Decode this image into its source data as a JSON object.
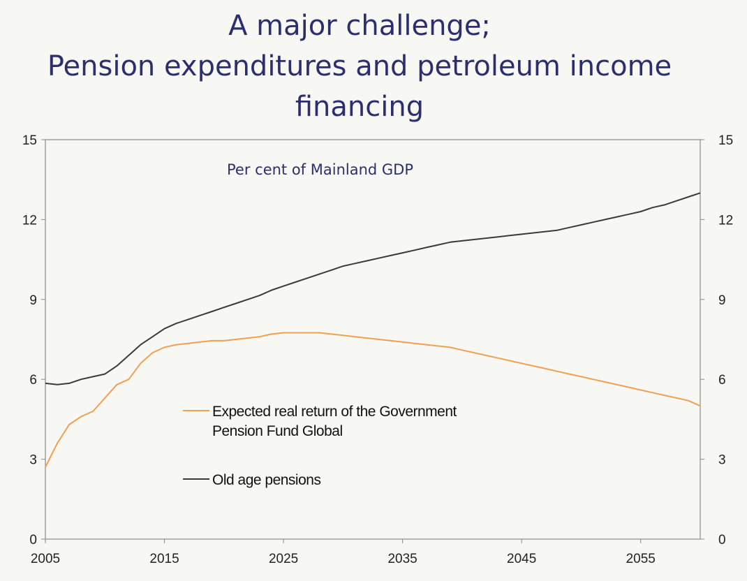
{
  "title": {
    "line1": "A major challenge;",
    "line2": "Pension expenditures and petroleum income",
    "line3": "financing"
  },
  "chart_data": {
    "type": "line",
    "subtitle": "Per cent of Mainland  GDP",
    "xlim": [
      2005,
      2060
    ],
    "ylim": [
      0,
      15
    ],
    "x_ticks": [
      2005,
      2015,
      2025,
      2035,
      2045,
      2055
    ],
    "y_ticks": [
      0,
      3,
      6,
      9,
      12,
      15
    ],
    "y_ticks_right": [
      0,
      3,
      6,
      9,
      12,
      15
    ],
    "grid": false,
    "legend_placement": "inside-bottom-left",
    "series": [
      {
        "name": "Expected real return of the Government Pension Fund Global",
        "legend_line1": "Expected real return of the Government",
        "legend_line2": "Pension Fund Global",
        "color": "#f0a050",
        "x": [
          2005,
          2006,
          2007,
          2008,
          2009,
          2010,
          2011,
          2012,
          2013,
          2014,
          2015,
          2016,
          2017,
          2018,
          2019,
          2020,
          2021,
          2022,
          2023,
          2024,
          2025,
          2026,
          2027,
          2028,
          2029,
          2030,
          2031,
          2032,
          2033,
          2034,
          2035,
          2036,
          2037,
          2038,
          2039,
          2040,
          2041,
          2042,
          2043,
          2044,
          2045,
          2046,
          2047,
          2048,
          2049,
          2050,
          2051,
          2052,
          2053,
          2054,
          2055,
          2056,
          2057,
          2058,
          2059,
          2060
        ],
        "values": [
          2.7,
          3.6,
          4.3,
          4.6,
          4.8,
          5.3,
          5.8,
          6.0,
          6.6,
          7.0,
          7.2,
          7.3,
          7.35,
          7.4,
          7.45,
          7.45,
          7.5,
          7.55,
          7.6,
          7.7,
          7.75,
          7.75,
          7.75,
          7.75,
          7.7,
          7.65,
          7.6,
          7.55,
          7.5,
          7.45,
          7.4,
          7.35,
          7.3,
          7.25,
          7.2,
          7.1,
          7.0,
          6.9,
          6.8,
          6.7,
          6.6,
          6.5,
          6.4,
          6.3,
          6.2,
          6.1,
          6.0,
          5.9,
          5.8,
          5.7,
          5.6,
          5.5,
          5.4,
          5.3,
          5.2,
          5.0
        ]
      },
      {
        "name": "Old age pensions",
        "legend_line1": "Old age pensions",
        "color": "#3a3a3a",
        "x": [
          2005,
          2006,
          2007,
          2008,
          2009,
          2010,
          2011,
          2012,
          2013,
          2014,
          2015,
          2016,
          2017,
          2018,
          2019,
          2020,
          2021,
          2022,
          2023,
          2024,
          2025,
          2026,
          2027,
          2028,
          2029,
          2030,
          2031,
          2032,
          2033,
          2034,
          2035,
          2036,
          2037,
          2038,
          2039,
          2040,
          2041,
          2042,
          2043,
          2044,
          2045,
          2046,
          2047,
          2048,
          2049,
          2050,
          2051,
          2052,
          2053,
          2054,
          2055,
          2056,
          2057,
          2058,
          2059,
          2060
        ],
        "values": [
          5.85,
          5.8,
          5.85,
          6.0,
          6.1,
          6.2,
          6.5,
          6.9,
          7.3,
          7.6,
          7.9,
          8.1,
          8.25,
          8.4,
          8.55,
          8.7,
          8.85,
          9.0,
          9.15,
          9.35,
          9.5,
          9.65,
          9.8,
          9.95,
          10.1,
          10.25,
          10.35,
          10.45,
          10.55,
          10.65,
          10.75,
          10.85,
          10.95,
          11.05,
          11.15,
          11.2,
          11.25,
          11.3,
          11.35,
          11.4,
          11.45,
          11.5,
          11.55,
          11.6,
          11.7,
          11.8,
          11.9,
          12.0,
          12.1,
          12.2,
          12.3,
          12.45,
          12.55,
          12.7,
          12.85,
          13.0
        ]
      }
    ]
  }
}
